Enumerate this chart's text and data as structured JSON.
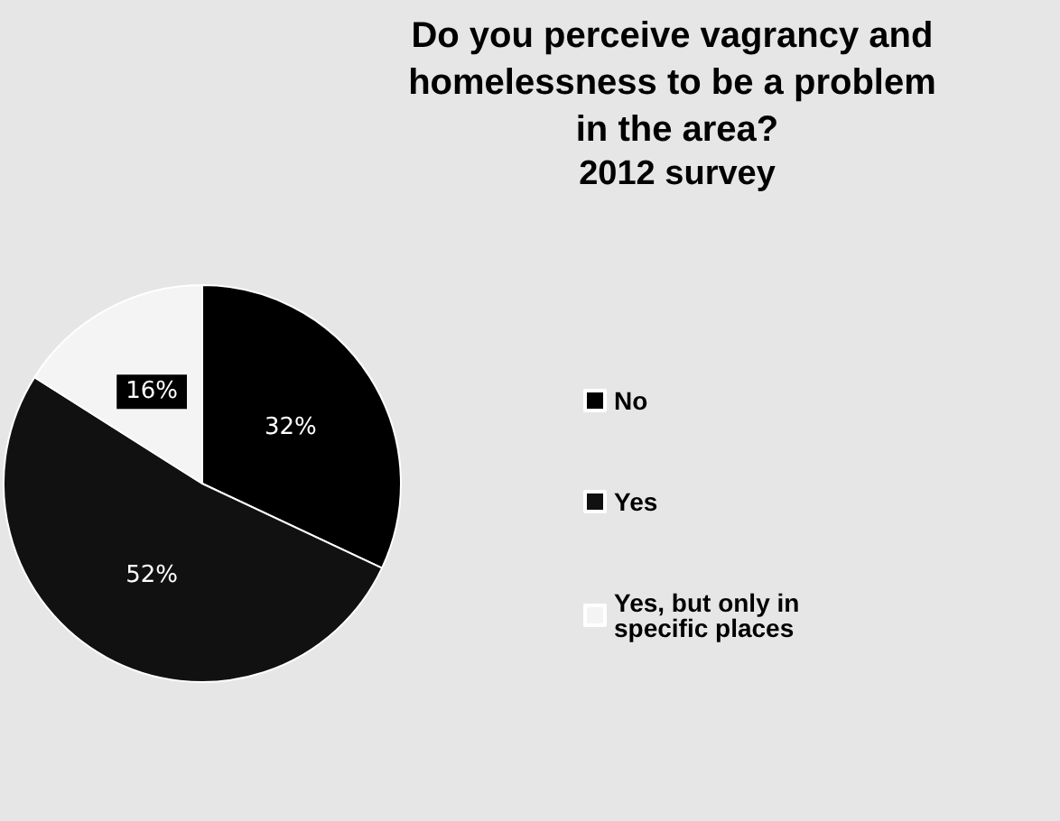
{
  "chart_data": {
    "type": "pie",
    "title": "Do you perceive vagrancy and homelessness to be a problem in the area?",
    "subtitle": "2012 survey",
    "categories": [
      "No",
      "Yes",
      "Yes, but only in specific places"
    ],
    "values": [
      32,
      52,
      16
    ],
    "colors": [
      "#000000",
      "#111111",
      "#f4f4f4"
    ],
    "value_labels": [
      "32%",
      "52%",
      "16%"
    ],
    "legend": "right"
  }
}
